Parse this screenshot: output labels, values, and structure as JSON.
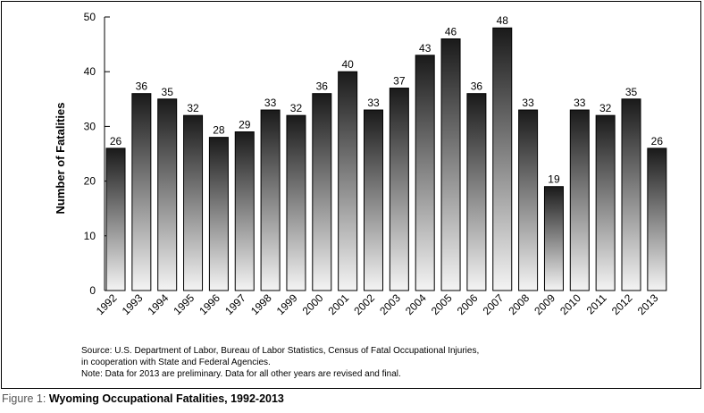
{
  "chart_data": {
    "type": "bar",
    "title": "",
    "xlabel": "",
    "ylabel": "Number of Fatalities",
    "ylim": [
      0,
      50
    ],
    "yticks": [
      0,
      10,
      20,
      30,
      40,
      50
    ],
    "grid": false,
    "categories": [
      "1992",
      "1993",
      "1994",
      "1995",
      "1996",
      "1997",
      "1998",
      "1999",
      "2000",
      "2001",
      "2002",
      "2003",
      "2004",
      "2005",
      "2006",
      "2007",
      "2008",
      "2009",
      "2010",
      "2011",
      "2012",
      "2013"
    ],
    "values": [
      26,
      36,
      35,
      32,
      28,
      29,
      33,
      32,
      36,
      40,
      33,
      37,
      43,
      46,
      36,
      48,
      33,
      19,
      33,
      32,
      35,
      26
    ],
    "data_labels": true
  },
  "source": {
    "line1": "Source: U.S. Department of Labor, Bureau of Labor Statistics, Census of Fatal Occupational Injuries,",
    "line2": "in cooperation with State and Federal Agencies.",
    "line3": "Note: Data for 2013 are preliminary. Data for all other years are revised and final."
  },
  "caption": {
    "label": "Figure 1:",
    "title": "Wyoming Occupational Fatalities, 1992-2013"
  },
  "colors": {
    "bar_top": "#1a1a1a",
    "bar_bottom": "#f4f4f4",
    "axis": "#000000"
  }
}
